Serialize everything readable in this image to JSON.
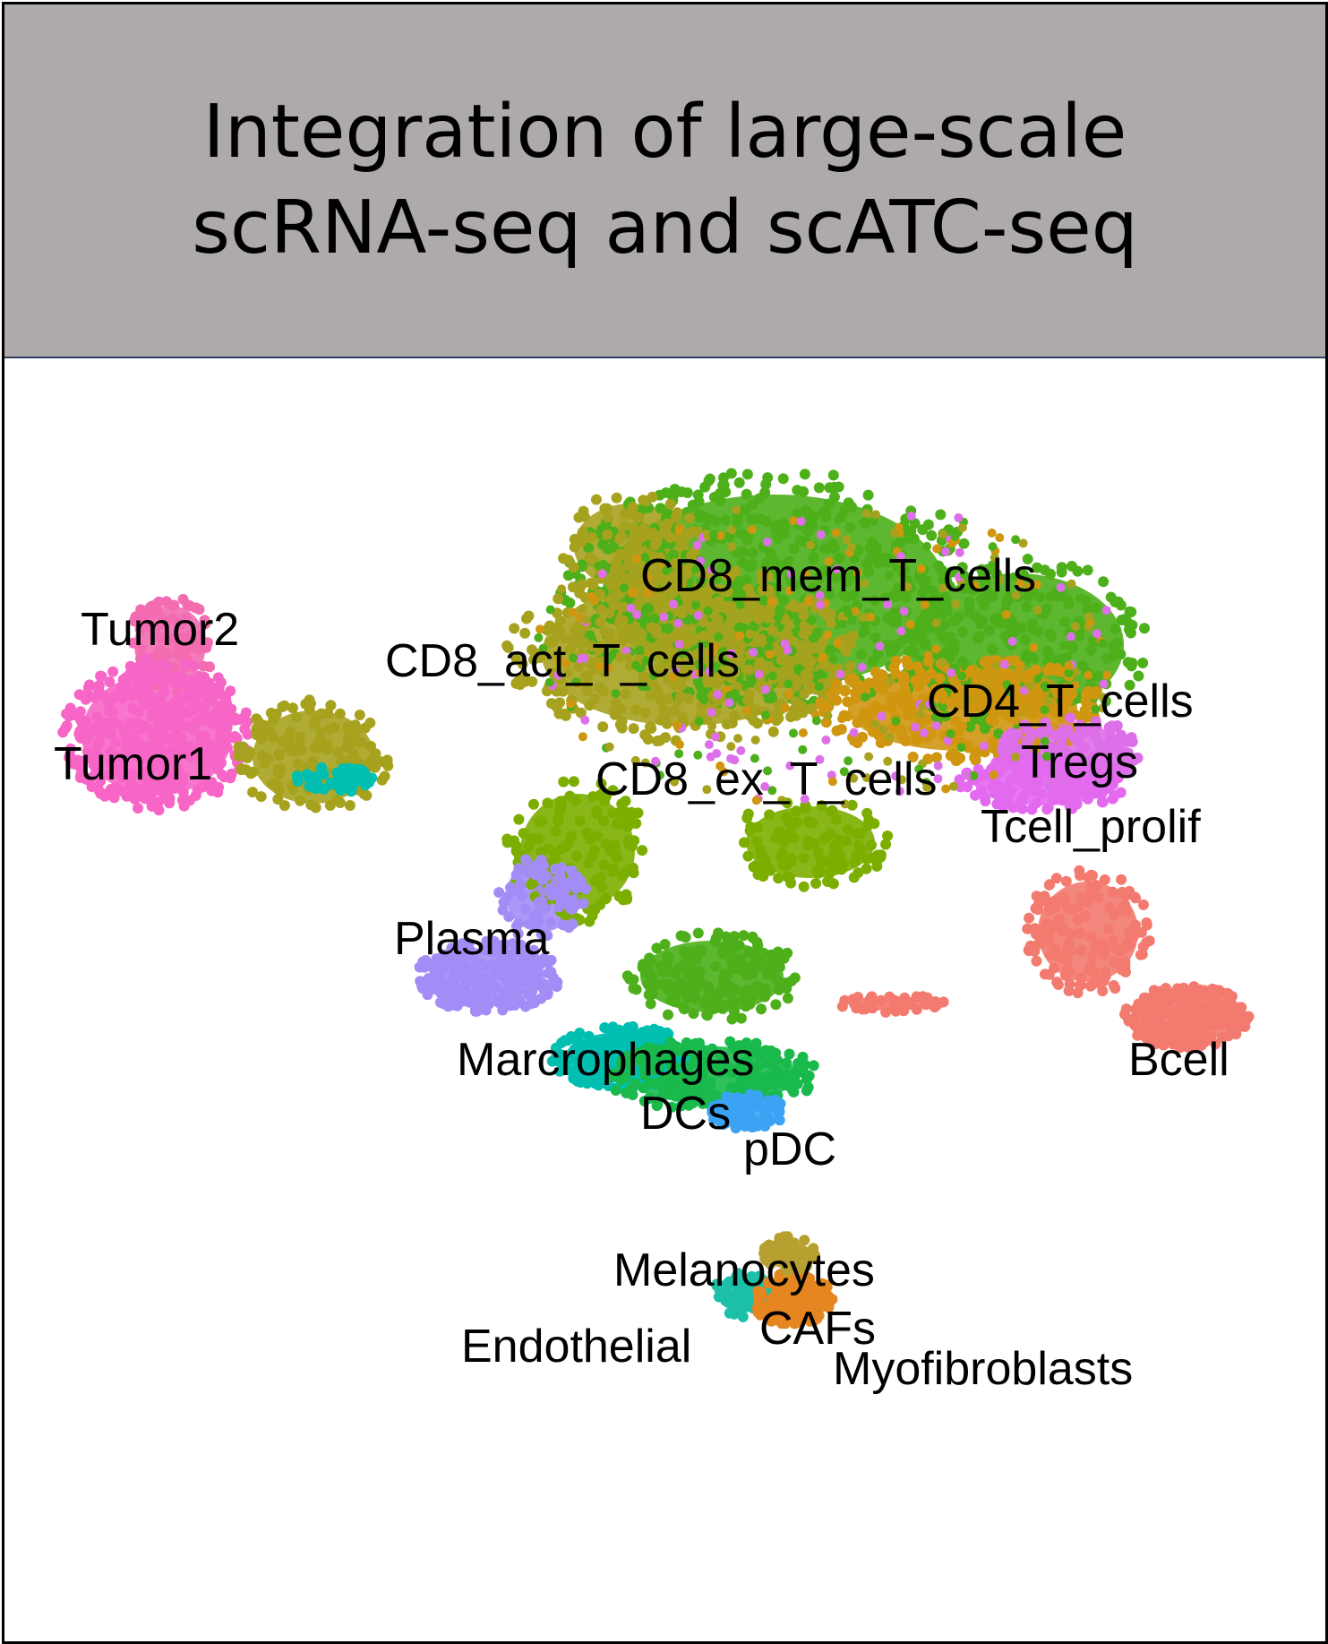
{
  "title": "Integration of large-scale\nscRNA-seq and scATC-seq",
  "chart_data": {
    "type": "scatter",
    "title": "Integration of large-scale scRNA-seq and scATC-seq",
    "xlabel": "",
    "ylabel": "",
    "axes_visible": false,
    "grid": false,
    "legend": "none",
    "clusters": [
      {
        "label": "CD8_mem_T_cells",
        "color": "#4daf1a"
      },
      {
        "label": "CD8_act_T_cells",
        "color": "#a7a21e"
      },
      {
        "label": "CD4_T_cells",
        "color": "#d0960f"
      },
      {
        "label": "Tregs",
        "color": "#dd6fe8"
      },
      {
        "label": "Tcell_prolif",
        "color": "#e36aef"
      },
      {
        "label": "CD8_ex_T_cells",
        "color": "#7cae00"
      },
      {
        "label": "Tumor2",
        "color": "#f36cb2"
      },
      {
        "label": "Tumor1",
        "color": "#f766c6"
      },
      {
        "label": "Plasma",
        "color": "#a48cf6"
      },
      {
        "label": "Marcrophages",
        "color": "#00bfb0"
      },
      {
        "label": "DCs",
        "color": "#19b94c"
      },
      {
        "label": "pDC",
        "color": "#3aa3f4"
      },
      {
        "label": "Bcell",
        "color": "#f37a6f"
      },
      {
        "label": "Melanocytes",
        "color": "#b8a030"
      },
      {
        "label": "CAFs",
        "color": "#e58a20"
      },
      {
        "label": "Endothelial",
        "color": "#1cbfa7"
      },
      {
        "label": "Myofibroblasts",
        "color": "#e58620"
      }
    ]
  }
}
